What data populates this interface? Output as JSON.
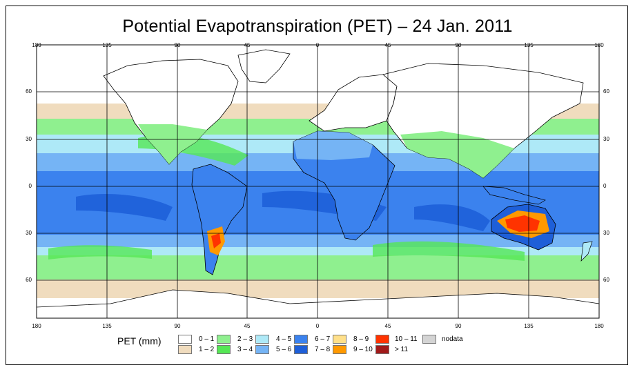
{
  "title": "Potential Evapotranspiration (PET) – 24 Jan. 2011",
  "axes": {
    "lon_ticks": [
      "180",
      "135",
      "90",
      "45",
      "0",
      "45",
      "90",
      "135",
      "180"
    ],
    "lat_ticks": [
      "60",
      "30",
      "0",
      "30",
      "60"
    ]
  },
  "legend": {
    "title": "PET (mm)",
    "items": [
      {
        "label": "0 – 1",
        "color": "#ffffff"
      },
      {
        "label": "1 – 2",
        "color": "#f0dcbe"
      },
      {
        "label": "2 – 3",
        "color": "#8ff08f"
      },
      {
        "label": "3 – 4",
        "color": "#55e755"
      },
      {
        "label": "4 – 5",
        "color": "#aee9f7"
      },
      {
        "label": "5 – 6",
        "color": "#75b4f5"
      },
      {
        "label": "6 – 7",
        "color": "#3b82ee"
      },
      {
        "label": "7 – 8",
        "color": "#1e5fd8"
      },
      {
        "label": "8 – 9",
        "color": "#ffe08a"
      },
      {
        "label": "9 – 10",
        "color": "#ff9900"
      },
      {
        "label": "10 – 11",
        "color": "#ff3300"
      },
      {
        "label": "> 11",
        "color": "#a11a1a"
      },
      {
        "label": "nodata",
        "color": "#d4d4d4"
      }
    ]
  }
}
